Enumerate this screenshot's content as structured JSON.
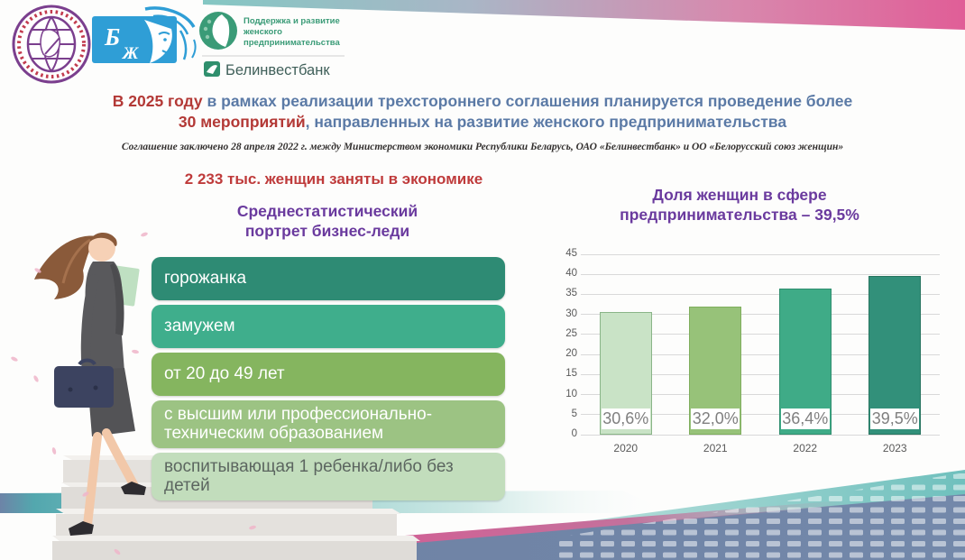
{
  "header": {
    "bsj_logo_letters": {
      "top": "Б",
      "bottom": "Ж"
    },
    "support_logo_lines": [
      "Поддержка и развитие",
      "женского",
      "предпринимательства"
    ],
    "bank_name": "Белинвестбанк"
  },
  "title": {
    "part1_red": "В 2025 году",
    "part1_blue": " в рамках реализации трехстороннего соглашения планируется проведение более",
    "part2_red": "30 мероприятий",
    "part2_blue": ", направленных на развитие женского предпринимательства"
  },
  "subtitle": "Соглашение заключено 28 апреля 2022 г. между Министерством экономики Республики Беларусь, ОАО «Белинвестбанк» и ОО «Белорусский союз женщин»",
  "left": {
    "stat_heading": "2 233 тыс. женщин заняты в экономике",
    "portrait_heading": "Среднестатистический портрет бизнес-леди",
    "portrait_items": [
      {
        "label": "горожанка",
        "color": "#2e8b74",
        "text_color": "#ffffff"
      },
      {
        "label": "замужем",
        "color": "#3fae8c",
        "text_color": "#ffffff"
      },
      {
        "label": "от 20 до 49 лет",
        "color": "#85b55f",
        "text_color": "#ffffff"
      },
      {
        "label": "с высшим или профессионально-техническим образованием",
        "color": "#9cc383",
        "text_color": "#ffffff"
      },
      {
        "label": "воспитывающая 1 ребенка/либо без детей",
        "color": "#c2ddbc",
        "text_color": "#5c6660"
      }
    ]
  },
  "chart_heading": "Доля женщин в сфере предпринимательства – 39,5%",
  "chart_data": {
    "type": "bar",
    "title": "Доля женщин в сфере предпринимательства – 39,5%",
    "categories": [
      "2020",
      "2021",
      "2022",
      "2023"
    ],
    "values": [
      30.6,
      32.0,
      36.4,
      39.5
    ],
    "value_labels": [
      "30,6%",
      "32,0%",
      "36,4%",
      "39,5%"
    ],
    "bar_colors": [
      "#c9e3c6",
      "#97c279",
      "#3fab87",
      "#32907a"
    ],
    "bar_border_colors": [
      "#8ab588",
      "#7fae5d",
      "#2f8e6e",
      "#27745f"
    ],
    "ylim": [
      0,
      45
    ],
    "ytick_step": 5,
    "grid": true,
    "legend": false,
    "xlabel": "",
    "ylabel": ""
  },
  "colors": {
    "title_blue": "#5b7aa6",
    "accent_red": "#b33936",
    "accent_purple": "#6a3a9e",
    "deco_teal": "#5fb7b9",
    "deco_pink": "#d9548f",
    "deco_blue_gray": "#7388aa"
  }
}
